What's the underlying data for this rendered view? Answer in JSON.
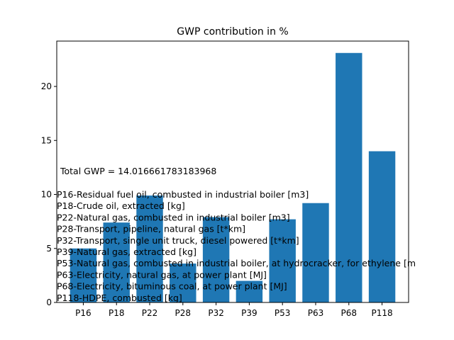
{
  "chart_data": {
    "type": "bar",
    "title": "GWP contribution in %",
    "xlabel": "",
    "ylabel": "",
    "categories": [
      "P16",
      "P18",
      "P22",
      "P28",
      "P32",
      "P39",
      "P53",
      "P63",
      "P68",
      "P118"
    ],
    "values": [
      5.0,
      7.4,
      9.9,
      3.6,
      7.9,
      2.0,
      7.7,
      9.2,
      23.1,
      14.0
    ],
    "ylim": [
      0,
      24.2
    ],
    "yticks": [
      0,
      5,
      10,
      15,
      20
    ],
    "color": "#1f77b4",
    "grid": false,
    "annotations": {
      "total": "Total GWP = 14.016661783183968",
      "legend_lines": [
        "P16-Residual fuel oil, combusted in industrial boiler [m3]",
        "P18-Crude oil, extracted [kg]",
        "P22-Natural gas, combusted in industrial boiler [m3]",
        "P28-Transport, pipeline, natural gas [t*km]",
        "P32-Transport, single unit truck, diesel powered [t*km]",
        "P39-Natural gas, extracted [kg]",
        "P53-Natural gas, combusted in industrial boiler, at hydrocracker, for ethylene [m",
        "P63-Electricity, natural gas, at power plant [MJ]",
        "P68-Electricity, bituminous coal, at power plant [MJ]",
        "P118-HDPE, combusted [kg]"
      ]
    }
  }
}
